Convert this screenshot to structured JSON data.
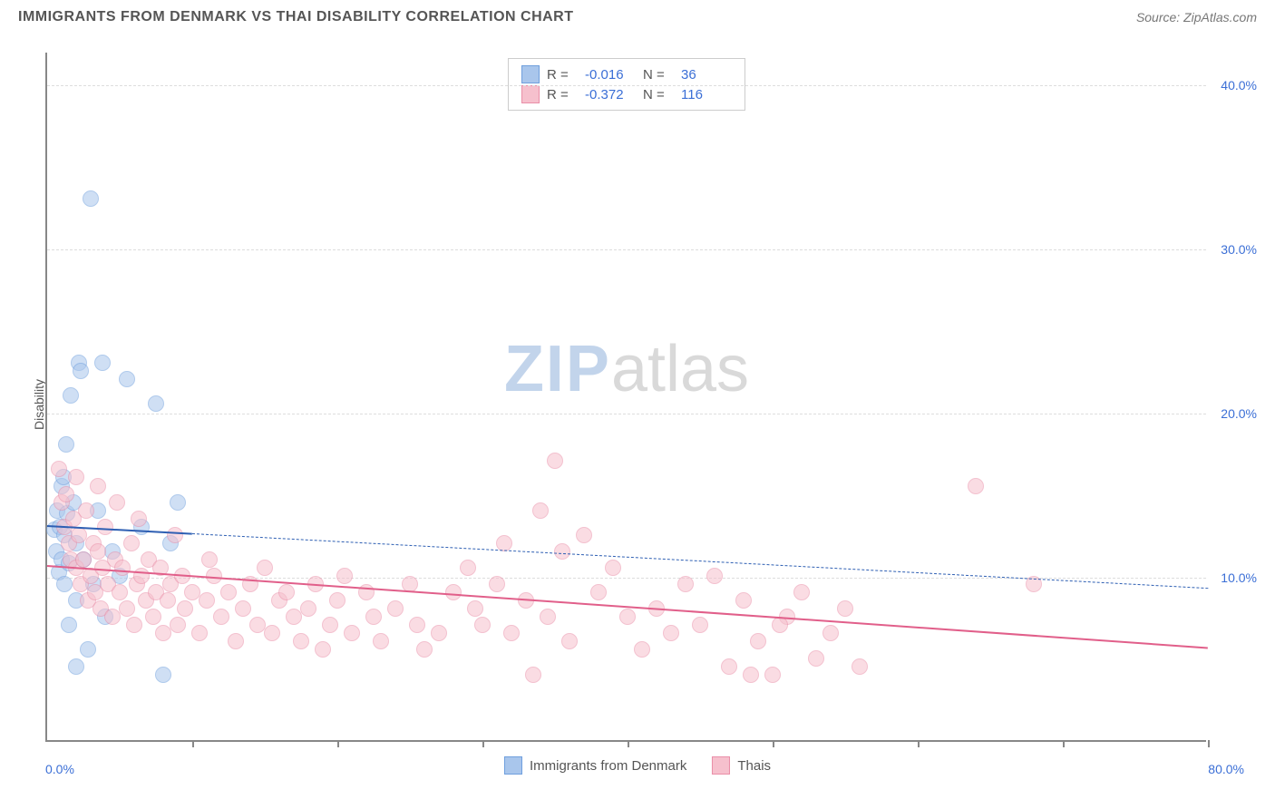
{
  "header": {
    "title": "IMMIGRANTS FROM DENMARK VS THAI DISABILITY CORRELATION CHART",
    "source": "Source: ZipAtlas.com"
  },
  "chart": {
    "type": "scatter",
    "ylabel": "Disability",
    "xlim": [
      0,
      80
    ],
    "ylim": [
      0,
      42
    ],
    "yticks": [
      10,
      20,
      30,
      40
    ],
    "ytick_labels": [
      "10.0%",
      "20.0%",
      "30.0%",
      "40.0%"
    ],
    "xticks": [
      0,
      10,
      20,
      30,
      40,
      50,
      60,
      70,
      80
    ],
    "xaxis_min_label": "0.0%",
    "xaxis_max_label": "80.0%",
    "background_color": "#ffffff",
    "grid_color": "#dddddd",
    "axis_color": "#888888",
    "marker_radius": 9,
    "marker_opacity": 0.55,
    "watermark": {
      "zip": "ZIP",
      "atlas": "atlas"
    },
    "series": [
      {
        "name": "Immigrants from Denmark",
        "color_fill": "#a9c6ec",
        "color_stroke": "#6f9fdd",
        "R": "-0.016",
        "N": "36",
        "trend": {
          "x1": 0,
          "y1": 13.2,
          "x2": 80,
          "y2": 9.4,
          "solid_until_x": 10,
          "color": "#2e5fb3",
          "width": 2
        },
        "points": [
          [
            0.5,
            12.8
          ],
          [
            0.6,
            11.5
          ],
          [
            0.7,
            14.0
          ],
          [
            0.8,
            10.2
          ],
          [
            0.9,
            13.0
          ],
          [
            1.0,
            15.5
          ],
          [
            1.0,
            11.0
          ],
          [
            1.1,
            16.0
          ],
          [
            1.2,
            12.5
          ],
          [
            1.2,
            9.5
          ],
          [
            1.3,
            18.0
          ],
          [
            1.4,
            13.8
          ],
          [
            1.5,
            10.8
          ],
          [
            1.5,
            7.0
          ],
          [
            1.6,
            21.0
          ],
          [
            1.8,
            14.5
          ],
          [
            2.0,
            12.0
          ],
          [
            2.0,
            8.5
          ],
          [
            2.2,
            23.0
          ],
          [
            2.3,
            22.5
          ],
          [
            2.5,
            11.0
          ],
          [
            2.8,
            5.5
          ],
          [
            3.0,
            33.0
          ],
          [
            3.2,
            9.5
          ],
          [
            3.5,
            14.0
          ],
          [
            3.8,
            23.0
          ],
          [
            4.0,
            7.5
          ],
          [
            4.5,
            11.5
          ],
          [
            5.0,
            10.0
          ],
          [
            5.5,
            22.0
          ],
          [
            6.5,
            13.0
          ],
          [
            7.5,
            20.5
          ],
          [
            8.5,
            12.0
          ],
          [
            9.0,
            14.5
          ],
          [
            2.0,
            4.5
          ],
          [
            8.0,
            4.0
          ]
        ]
      },
      {
        "name": "Thais",
        "color_fill": "#f6c0cd",
        "color_stroke": "#ea8fa8",
        "R": "-0.372",
        "N": "116",
        "trend": {
          "x1": 0,
          "y1": 10.8,
          "x2": 80,
          "y2": 5.8,
          "solid_until_x": 80,
          "color": "#e15f8a",
          "width": 2.5
        },
        "points": [
          [
            0.8,
            16.5
          ],
          [
            1.0,
            14.5
          ],
          [
            1.2,
            13.0
          ],
          [
            1.3,
            15.0
          ],
          [
            1.5,
            12.0
          ],
          [
            1.6,
            11.0
          ],
          [
            1.8,
            13.5
          ],
          [
            2.0,
            10.5
          ],
          [
            2.2,
            12.5
          ],
          [
            2.3,
            9.5
          ],
          [
            2.5,
            11.0
          ],
          [
            2.7,
            14.0
          ],
          [
            2.8,
            8.5
          ],
          [
            3.0,
            10.0
          ],
          [
            3.2,
            12.0
          ],
          [
            3.3,
            9.0
          ],
          [
            3.5,
            11.5
          ],
          [
            3.7,
            8.0
          ],
          [
            3.8,
            10.5
          ],
          [
            4.0,
            13.0
          ],
          [
            4.2,
            9.5
          ],
          [
            4.5,
            7.5
          ],
          [
            4.7,
            11.0
          ],
          [
            5.0,
            9.0
          ],
          [
            5.2,
            10.5
          ],
          [
            5.5,
            8.0
          ],
          [
            5.8,
            12.0
          ],
          [
            6.0,
            7.0
          ],
          [
            6.2,
            9.5
          ],
          [
            6.5,
            10.0
          ],
          [
            6.8,
            8.5
          ],
          [
            7.0,
            11.0
          ],
          [
            7.3,
            7.5
          ],
          [
            7.5,
            9.0
          ],
          [
            7.8,
            10.5
          ],
          [
            8.0,
            6.5
          ],
          [
            8.3,
            8.5
          ],
          [
            8.5,
            9.5
          ],
          [
            9.0,
            7.0
          ],
          [
            9.3,
            10.0
          ],
          [
            9.5,
            8.0
          ],
          [
            10.0,
            9.0
          ],
          [
            10.5,
            6.5
          ],
          [
            11.0,
            8.5
          ],
          [
            11.5,
            10.0
          ],
          [
            12.0,
            7.5
          ],
          [
            12.5,
            9.0
          ],
          [
            13.0,
            6.0
          ],
          [
            13.5,
            8.0
          ],
          [
            14.0,
            9.5
          ],
          [
            14.5,
            7.0
          ],
          [
            15.0,
            10.5
          ],
          [
            15.5,
            6.5
          ],
          [
            16.0,
            8.5
          ],
          [
            16.5,
            9.0
          ],
          [
            17.0,
            7.5
          ],
          [
            17.5,
            6.0
          ],
          [
            18.0,
            8.0
          ],
          [
            18.5,
            9.5
          ],
          [
            19.0,
            5.5
          ],
          [
            19.5,
            7.0
          ],
          [
            20.0,
            8.5
          ],
          [
            20.5,
            10.0
          ],
          [
            21.0,
            6.5
          ],
          [
            22.0,
            9.0
          ],
          [
            22.5,
            7.5
          ],
          [
            23.0,
            6.0
          ],
          [
            24.0,
            8.0
          ],
          [
            25.0,
            9.5
          ],
          [
            25.5,
            7.0
          ],
          [
            26.0,
            5.5
          ],
          [
            27.0,
            6.5
          ],
          [
            28.0,
            9.0
          ],
          [
            29.0,
            10.5
          ],
          [
            29.5,
            8.0
          ],
          [
            30.0,
            7.0
          ],
          [
            31.0,
            9.5
          ],
          [
            31.5,
            12.0
          ],
          [
            32.0,
            6.5
          ],
          [
            33.0,
            8.5
          ],
          [
            34.0,
            14.0
          ],
          [
            34.5,
            7.5
          ],
          [
            35.0,
            17.0
          ],
          [
            35.5,
            11.5
          ],
          [
            36.0,
            6.0
          ],
          [
            37.0,
            12.5
          ],
          [
            38.0,
            9.0
          ],
          [
            39.0,
            10.5
          ],
          [
            40.0,
            7.5
          ],
          [
            41.0,
            5.5
          ],
          [
            42.0,
            8.0
          ],
          [
            43.0,
            6.5
          ],
          [
            44.0,
            9.5
          ],
          [
            45.0,
            7.0
          ],
          [
            46.0,
            10.0
          ],
          [
            47.0,
            4.5
          ],
          [
            48.0,
            8.5
          ],
          [
            49.0,
            6.0
          ],
          [
            50.0,
            4.0
          ],
          [
            51.0,
            7.5
          ],
          [
            52.0,
            9.0
          ],
          [
            53.0,
            5.0
          ],
          [
            54.0,
            6.5
          ],
          [
            55.0,
            8.0
          ],
          [
            56.0,
            4.5
          ],
          [
            48.5,
            4.0
          ],
          [
            50.5,
            7.0
          ],
          [
            33.5,
            4.0
          ],
          [
            64.0,
            15.5
          ],
          [
            68.0,
            9.5
          ],
          [
            2.0,
            16.0
          ],
          [
            3.5,
            15.5
          ],
          [
            4.8,
            14.5
          ],
          [
            6.3,
            13.5
          ],
          [
            8.8,
            12.5
          ],
          [
            11.2,
            11.0
          ]
        ]
      }
    ],
    "legend_bottom": [
      {
        "label": "Immigrants from Denmark",
        "fill": "#a9c6ec",
        "stroke": "#6f9fdd"
      },
      {
        "label": "Thais",
        "fill": "#f6c0cd",
        "stroke": "#ea8fa8"
      }
    ]
  }
}
